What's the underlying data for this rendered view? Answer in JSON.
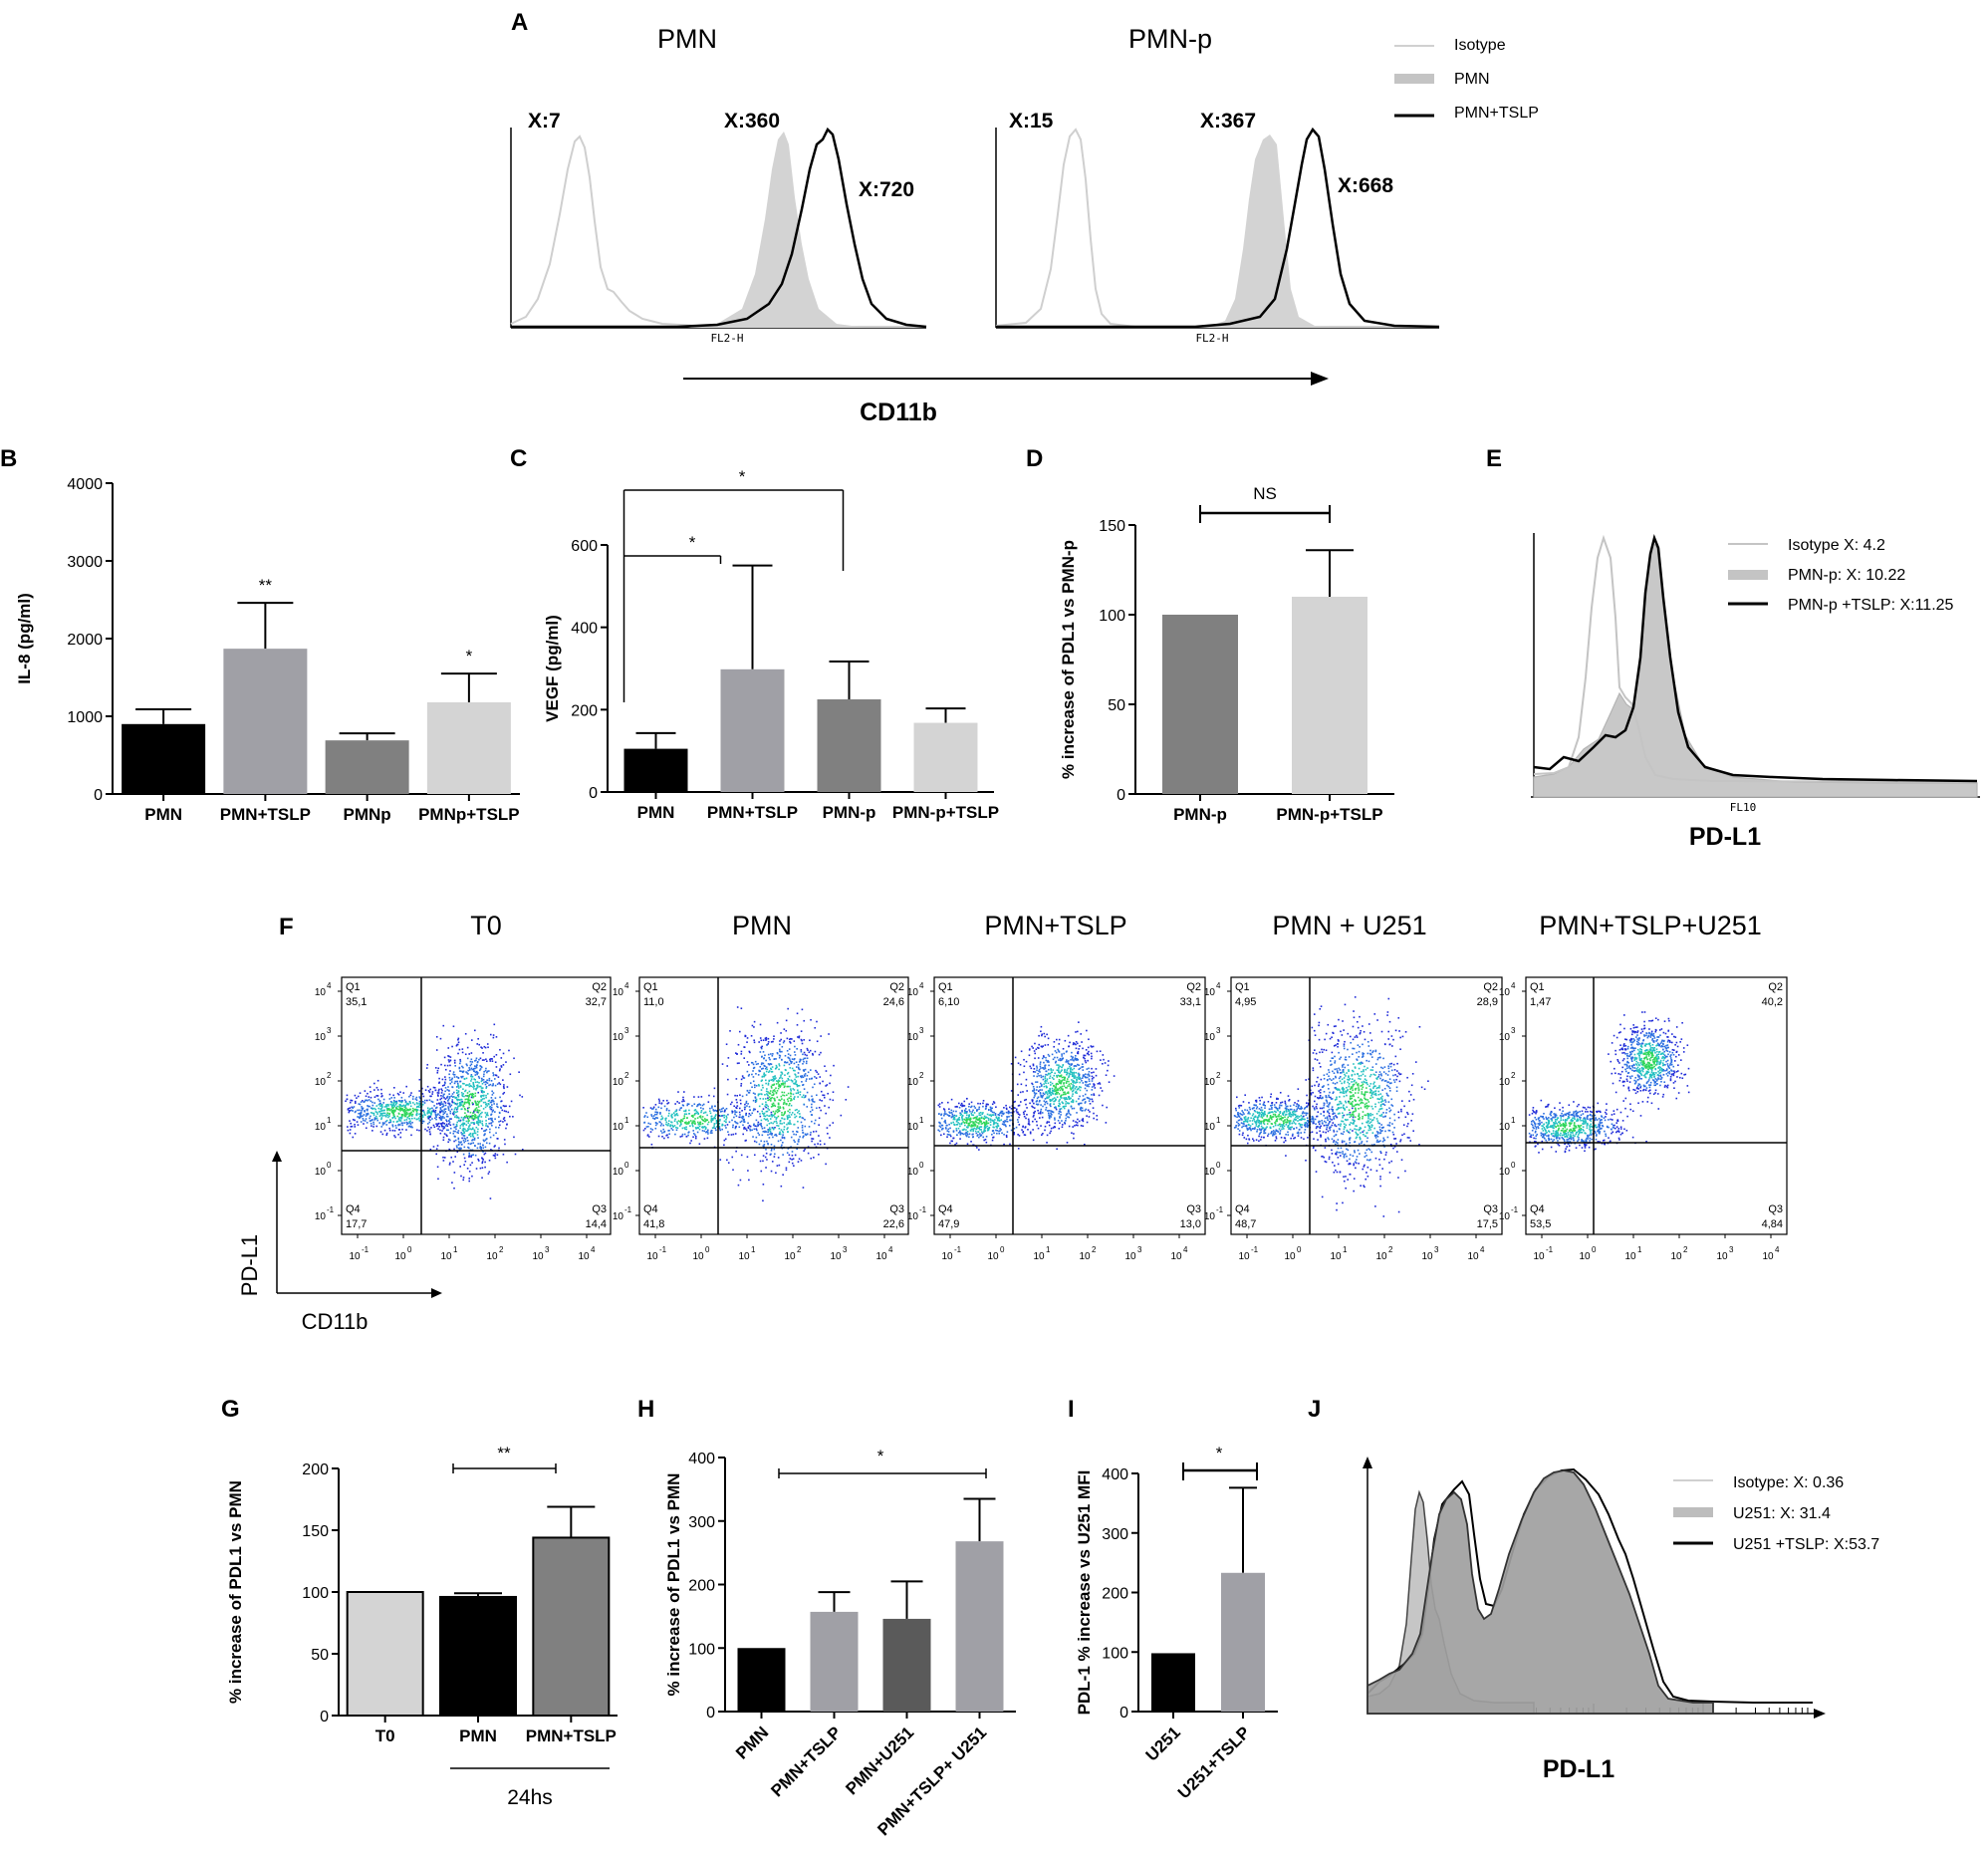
{
  "chart_data": [
    {
      "panel": "A",
      "type": "histogram",
      "x_axis_label": "CD11b",
      "channel_label": "FL2-H",
      "legend": [
        "Isotype",
        "PMN",
        "PMN+TSLP"
      ],
      "plots": [
        {
          "title": "PMN",
          "annotations": [
            "X:7",
            "X:360",
            "X:720"
          ]
        },
        {
          "title": "PMN-p",
          "annotations": [
            "X:15",
            "X:367",
            "X:668"
          ]
        }
      ]
    },
    {
      "panel": "B",
      "type": "bar",
      "ylabel": "IL-8 (pg/ml)",
      "ylim": [
        0,
        4000
      ],
      "yticks": [
        "0",
        "1000",
        "2000",
        "3000",
        "4000"
      ],
      "categories": [
        "PMN",
        "PMN+TSLP",
        "PMNp",
        "PMNp+TSLP"
      ],
      "values": [
        900,
        1870,
        690,
        1180
      ],
      "errors": [
        190,
        590,
        90,
        370
      ],
      "significance": [
        "",
        "**",
        "",
        "*"
      ],
      "colors": [
        "#000000",
        "#a0a0a6",
        "#808080",
        "#d4d4d4"
      ]
    },
    {
      "panel": "C",
      "type": "bar",
      "ylabel": "VEGF (pg/ml)",
      "ylim": [
        0,
        600
      ],
      "yticks": [
        "0",
        "200",
        "400",
        "600"
      ],
      "categories": [
        "PMN",
        "PMN+TSLP",
        "PMN-p",
        "PMN-p+TSLP"
      ],
      "values": [
        105,
        298,
        225,
        168
      ],
      "errors": [
        38,
        252,
        92,
        35
      ],
      "brackets": [
        "*",
        "*"
      ],
      "colors": [
        "#000000",
        "#a0a0a6",
        "#808080",
        "#d4d4d4"
      ]
    },
    {
      "panel": "D",
      "type": "bar",
      "ylabel": "% increase of PDL1 vs PMN-p",
      "ylim": [
        0,
        150
      ],
      "yticks": [
        "0",
        "50",
        "100",
        "150"
      ],
      "categories": [
        "PMN-p",
        "PMN-p+TSLP"
      ],
      "values": [
        100,
        110
      ],
      "errors": [
        0,
        26
      ],
      "bracket": "NS",
      "colors": [
        "#808080",
        "#d4d4d4"
      ]
    },
    {
      "panel": "E",
      "type": "histogram",
      "x_axis_label": "PD-L1",
      "channel_label": "FL10",
      "legend": [
        "Isotype X: 4.2",
        "PMN-p: X: 10.22",
        "PMN-p +TSLP: X:11.25"
      ]
    },
    {
      "panel": "F",
      "type": "scatter",
      "x_axis_label": "CD11b",
      "y_axis_label": "PD-L1",
      "x_ticks": [
        "10",
        "10",
        "10",
        "10",
        "10",
        "10"
      ],
      "x_tick_exp": [
        "-1",
        "0",
        "1",
        "2",
        "3",
        "4"
      ],
      "y_ticks": [
        "10",
        "10",
        "10",
        "10",
        "10",
        "10"
      ],
      "y_tick_exp": [
        "4",
        "3",
        "2",
        "1",
        "0",
        "-1"
      ],
      "quadrant_names": [
        "Q1",
        "Q2",
        "Q4",
        "Q3"
      ],
      "plots": [
        {
          "title": "T0",
          "Q1": "35,1",
          "Q2": "32,7",
          "Q4": "17,7",
          "Q3": "14,4"
        },
        {
          "title": "PMN",
          "Q1": "11,0",
          "Q2": "24,6",
          "Q4": "41,8",
          "Q3": "22,6"
        },
        {
          "title": "PMN+TSLP",
          "Q1": "6,10",
          "Q2": "33,1",
          "Q4": "47,9",
          "Q3": "13,0"
        },
        {
          "title": "PMN + U251",
          "Q1": "4,95",
          "Q2": "28,9",
          "Q4": "48,7",
          "Q3": "17,5"
        },
        {
          "title": "PMN+TSLP+U251",
          "Q1": "1,47",
          "Q2": "40,2",
          "Q4": "53,5",
          "Q3": "4,84"
        }
      ]
    },
    {
      "panel": "G",
      "type": "bar",
      "ylabel": "% increase of PDL1  vs PMN",
      "ylim": [
        0,
        200
      ],
      "yticks": [
        "0",
        "50",
        "100",
        "150",
        "200"
      ],
      "categories": [
        "T0",
        "PMN",
        "PMN+TSLP"
      ],
      "values": [
        100,
        96,
        144
      ],
      "errors": [
        0,
        3,
        25
      ],
      "bracket": "**",
      "group_label": "24hs",
      "colors": [
        "#d4d4d4",
        "#000000",
        "#808080"
      ]
    },
    {
      "panel": "H",
      "type": "bar",
      "ylabel": "% increase of PDL1  vs PMN",
      "ylim": [
        0,
        400
      ],
      "yticks": [
        "0",
        "100",
        "200",
        "300",
        "400"
      ],
      "categories": [
        "PMN",
        "PMN+TSLP",
        "PMN+U251",
        "PMN+TSLP+ U251"
      ],
      "values": [
        100,
        157,
        146,
        268
      ],
      "errors": [
        0,
        31,
        59,
        67
      ],
      "bracket": "*",
      "colors": [
        "#000000",
        "#a0a0a6",
        "#5a5a5a",
        "#a0a0a6"
      ]
    },
    {
      "panel": "I",
      "type": "bar",
      "ylabel": "PDL-1 % increase vs U251 MFI",
      "ylim": [
        0,
        400
      ],
      "yticks": [
        "0",
        "100",
        "200",
        "300",
        "400"
      ],
      "categories": [
        "U251",
        "U251+TSLP"
      ],
      "values": [
        98,
        233
      ],
      "errors": [
        0,
        143
      ],
      "bracket": "*",
      "colors": [
        "#000000",
        "#a0a0a6"
      ]
    },
    {
      "panel": "J",
      "type": "histogram",
      "x_axis_label": "PD-L1",
      "legend": [
        "Isotype: X: 0.36",
        "U251: X: 31.4",
        "U251 +TSLP: X:53.7"
      ]
    }
  ],
  "panel_labels": [
    "A",
    "B",
    "C",
    "D",
    "E",
    "F",
    "G",
    "H",
    "I",
    "J"
  ]
}
